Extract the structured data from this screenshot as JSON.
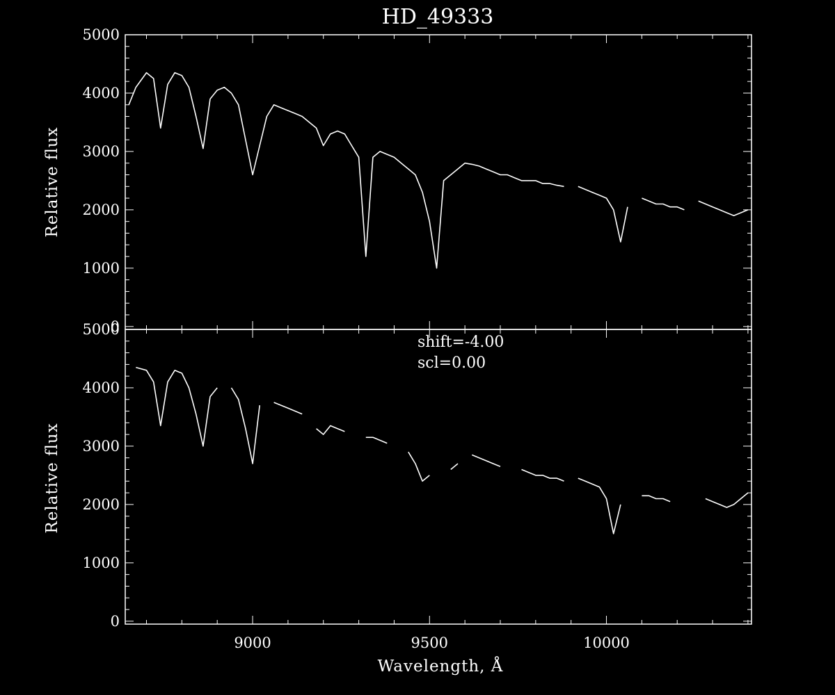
{
  "chart_data": [
    {
      "type": "line",
      "title": "HD_49333",
      "xlabel": "",
      "ylabel": "Relative flux",
      "xlim": [
        8640,
        10410
      ],
      "ylim": [
        -50,
        5000
      ],
      "xticks": [
        9000,
        9500,
        10000
      ],
      "yticks": [
        0,
        1000,
        2000,
        3000,
        4000,
        5000
      ],
      "ytick_labels": [
        "0",
        "1000",
        "2000",
        "3000",
        "4000",
        "5000"
      ],
      "xtick_labels_shown": false,
      "grid": false,
      "annotations": [],
      "series": [
        {
          "x": [
            8650,
            8670,
            8700,
            8720,
            8740,
            8760,
            8780,
            8800,
            8820,
            8840,
            8860,
            8880,
            8900,
            8920,
            8940,
            8960,
            8980,
            9000,
            9020,
            9040,
            9060,
            9080,
            9100,
            9120,
            9140,
            9160,
            9180,
            9200,
            9220,
            9240,
            9260,
            9280,
            9300,
            9320,
            9340,
            9360,
            9380,
            9400,
            9420,
            9440,
            9460,
            9480,
            9500,
            9520,
            9540,
            9560,
            9580,
            9600,
            9620,
            9640,
            9660,
            9680,
            9700,
            9720,
            9740,
            9760,
            9780,
            9800,
            9820,
            9840,
            9860,
            9880,
            9900,
            9920,
            9940,
            9960,
            9980,
            10000,
            10020,
            10040,
            10060,
            10080,
            10100,
            10120,
            10140,
            10160,
            10180,
            10200,
            10220,
            10240,
            10260,
            10280,
            10300,
            10320,
            10340,
            10360,
            10380,
            10400
          ],
          "y": [
            3800,
            4100,
            4350,
            4250,
            3400,
            4150,
            4350,
            4300,
            4100,
            3600,
            3050,
            3900,
            4050,
            4100,
            4000,
            3800,
            3200,
            2600,
            3100,
            3600,
            3800,
            3750,
            3700,
            3650,
            3600,
            3500,
            3400,
            3100,
            3300,
            3350,
            3300,
            3100,
            2900,
            1200,
            2900,
            3000,
            2950,
            2900,
            2800,
            2700,
            2600,
            2300,
            1800,
            1000,
            2500,
            2600,
            2700,
            2800,
            2780,
            2750,
            2700,
            2650,
            2600,
            2600,
            2550,
            2500,
            2500,
            2500,
            2450,
            2450,
            2420,
            2400,
            null,
            2400,
            2350,
            2300,
            2250,
            2200,
            2000,
            1450,
            2050,
            null,
            2200,
            2150,
            2100,
            2100,
            2050,
            2050,
            2000,
            null,
            2150,
            2100,
            2050,
            2000,
            1950,
            1900,
            1950,
            2000
          ]
        }
      ]
    },
    {
      "type": "line",
      "title": "",
      "xlabel": "Wavelength, Å",
      "ylabel": "Relative flux",
      "xlim": [
        8640,
        10410
      ],
      "ylim": [
        -50,
        5000
      ],
      "xticks": [
        9000,
        9500,
        10000
      ],
      "xtick_labels": [
        "9000",
        "9500",
        "10000"
      ],
      "yticks": [
        0,
        1000,
        2000,
        3000,
        4000,
        5000
      ],
      "ytick_labels": [
        "0",
        "1000",
        "2000",
        "3000",
        "4000",
        "5000"
      ],
      "grid": false,
      "annotations": [
        "shift=-4.00",
        "scl=0.00"
      ],
      "series": [
        {
          "x": [
            8650,
            8670,
            8700,
            8720,
            8740,
            8760,
            8780,
            8800,
            8820,
            8840,
            8860,
            8880,
            8900,
            8920,
            8940,
            8960,
            8980,
            9000,
            9020,
            9040,
            9060,
            9080,
            9100,
            9120,
            9140,
            9160,
            9180,
            9200,
            9220,
            9240,
            9260,
            9280,
            9300,
            9320,
            9340,
            9360,
            9380,
            9400,
            9420,
            9440,
            9460,
            9480,
            9500,
            9520,
            9540,
            9560,
            9580,
            9600,
            9620,
            9640,
            9660,
            9680,
            9700,
            9720,
            9740,
            9760,
            9780,
            9800,
            9820,
            9840,
            9860,
            9880,
            9900,
            9920,
            9940,
            9960,
            9980,
            10000,
            10020,
            10040,
            10060,
            10080,
            10100,
            10120,
            10140,
            10160,
            10180,
            10200,
            10220,
            10240,
            10260,
            10280,
            10300,
            10320,
            10340,
            10360,
            10380,
            10400
          ],
          "y": [
            null,
            4350,
            4300,
            4100,
            3350,
            4100,
            4300,
            4250,
            4000,
            3550,
            3000,
            3850,
            4000,
            null,
            4000,
            3800,
            3300,
            2700,
            3700,
            null,
            3750,
            3700,
            3650,
            3600,
            3550,
            null,
            3300,
            3200,
            3350,
            3300,
            3250,
            null,
            null,
            3150,
            3150,
            3100,
            3050,
            null,
            null,
            2900,
            2700,
            2400,
            2500,
            null,
            null,
            2600,
            2700,
            null,
            2850,
            2800,
            2750,
            2700,
            2650,
            null,
            null,
            2600,
            2550,
            2500,
            2500,
            2450,
            2450,
            2400,
            null,
            2450,
            2400,
            2350,
            2300,
            2100,
            1500,
            2000,
            null,
            null,
            2150,
            2150,
            2100,
            2100,
            2050,
            null,
            null,
            null,
            null,
            2100,
            2050,
            2000,
            1950,
            2000,
            2100,
            2200
          ]
        }
      ]
    }
  ]
}
